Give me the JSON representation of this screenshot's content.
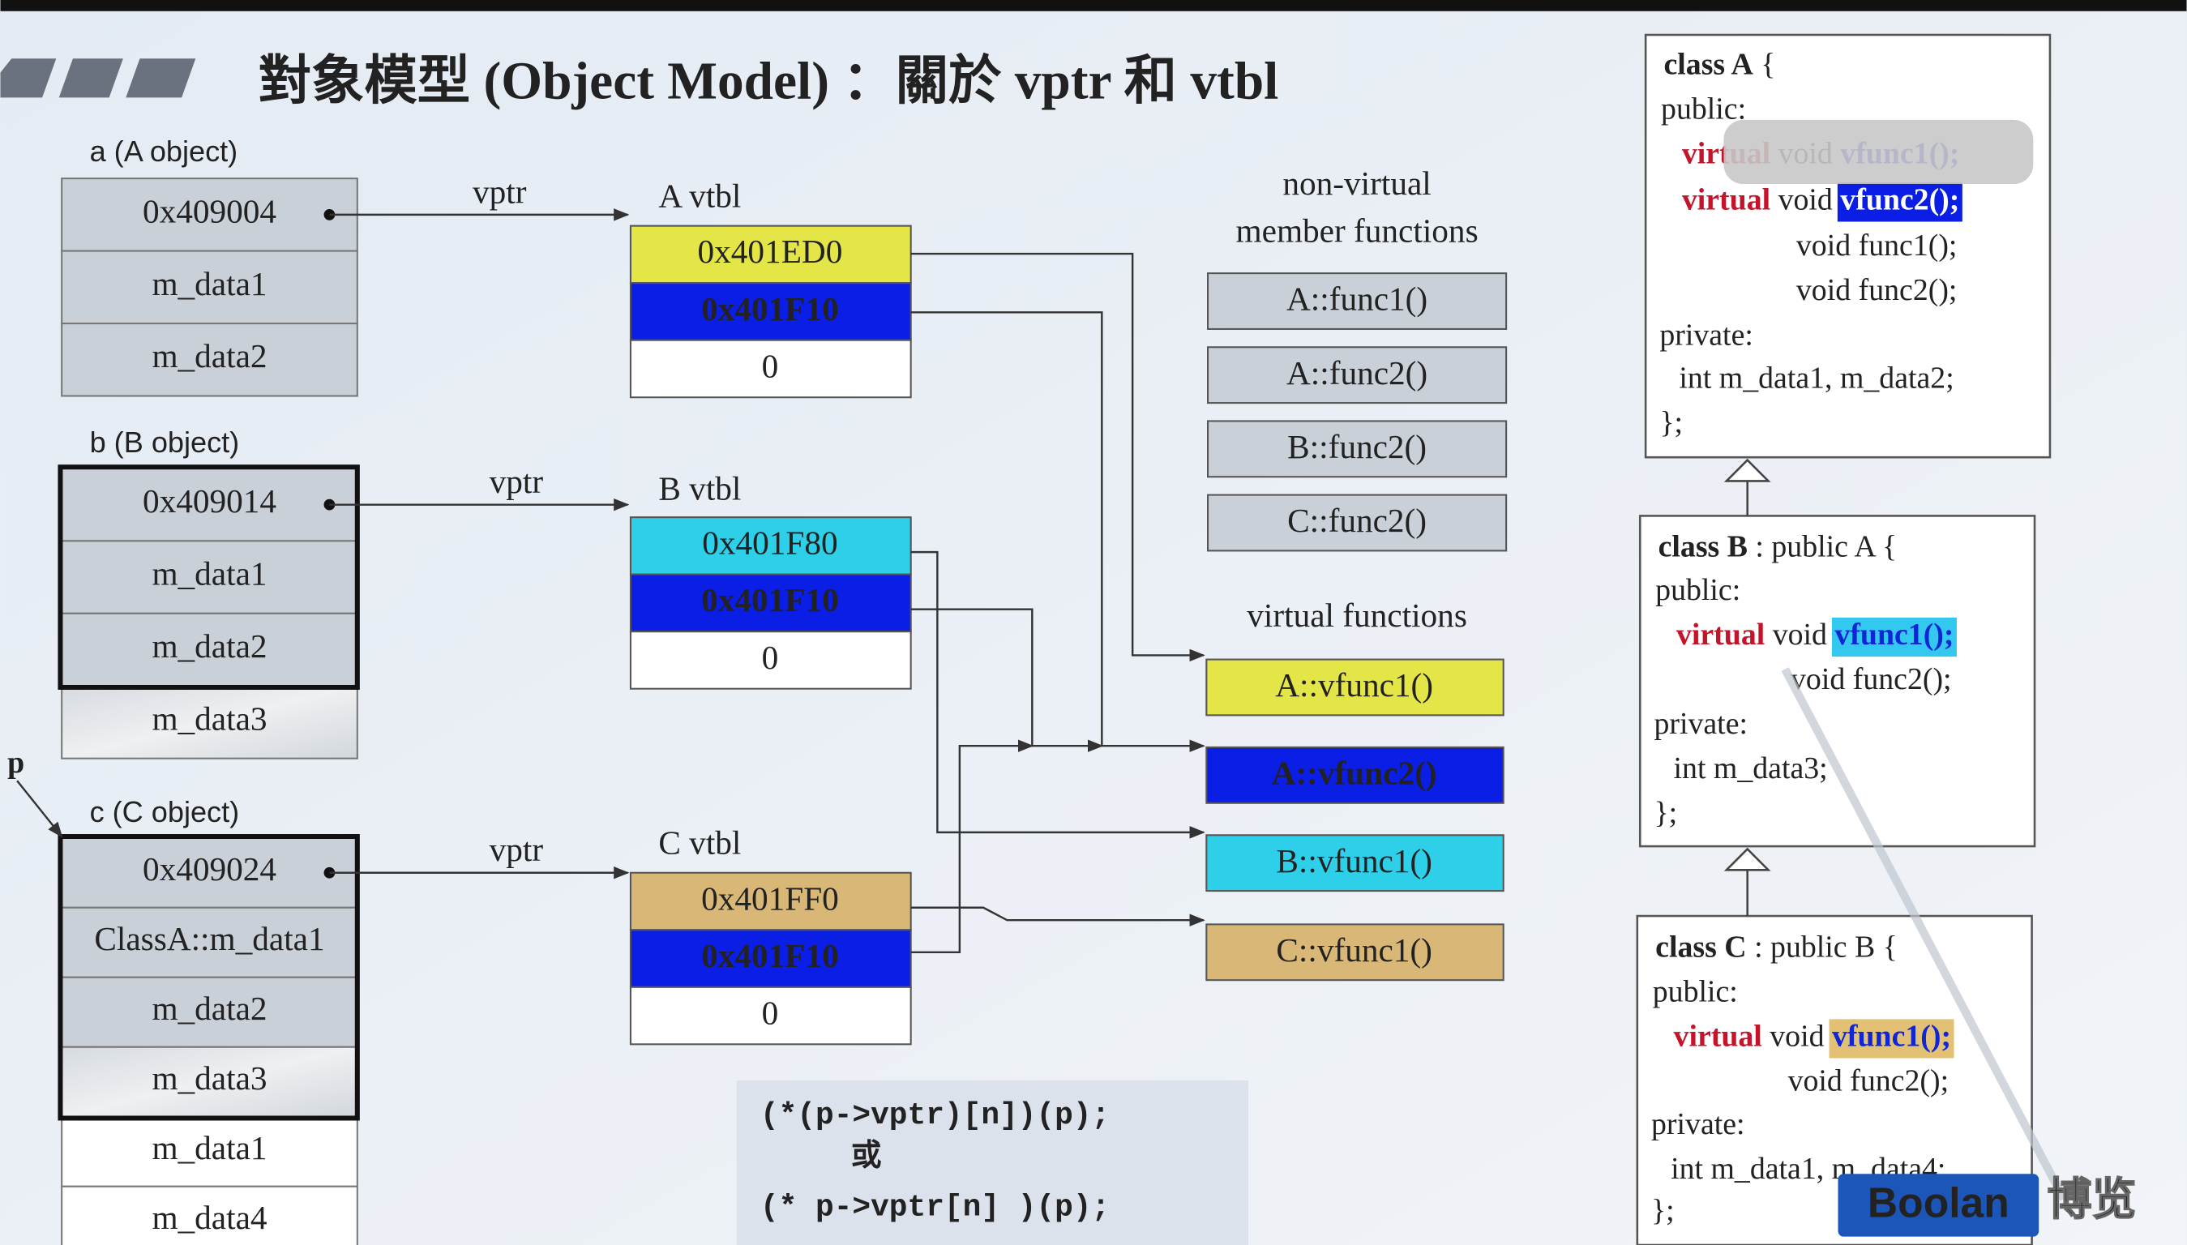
{
  "title": "對象模型 (Object Model) ：關於 vptr 和 vtbl",
  "objects": [
    {
      "label": "a (A object)",
      "cells": [
        "0x409004",
        "m_data1",
        "m_data2"
      ]
    },
    {
      "label": "b (B object)",
      "cells": [
        "0x409014",
        "m_data1",
        "m_data2",
        "m_data3"
      ]
    },
    {
      "label": "c (C object)",
      "cells": [
        "0x409024",
        "ClassA::m_data1",
        "m_data2",
        "m_data3",
        "m_data1",
        "m_data4"
      ]
    }
  ],
  "pointer_label": "p",
  "vptr_labels": [
    "vptr",
    "vptr",
    "vptr"
  ],
  "vtbls": [
    {
      "label": "A vtbl",
      "entries": [
        "0x401ED0",
        "0x401F10",
        "0"
      ]
    },
    {
      "label": "B vtbl",
      "entries": [
        "0x401F80",
        "0x401F10",
        "0"
      ]
    },
    {
      "label": "C vtbl",
      "entries": [
        "0x401FF0",
        "0x401F10",
        "0"
      ]
    }
  ],
  "non_virtual": {
    "heading": [
      "non-virtual",
      "member functions"
    ],
    "functions": [
      "A::func1()",
      "A::func2()",
      "B::func2()",
      "C::func2()"
    ]
  },
  "virtual": {
    "heading": "virtual functions",
    "functions": [
      "A::vfunc1()",
      "A::vfunc2()",
      "B::vfunc1()",
      "C::vfunc1()"
    ]
  },
  "call_code": [
    "(*(p->vptr)[n])(p);",
    "或",
    "(* p->vptr[n] )(p);"
  ],
  "classes": [
    {
      "lines": [
        [
          "class A",
          " {"
        ],
        [
          "public:"
        ],
        [
          "virtual",
          " void ",
          "vfunc1();"
        ],
        [
          "virtual",
          " void ",
          "vfunc2();"
        ],
        [
          "void  func1();"
        ],
        [
          "void  func2();"
        ],
        [
          "private:"
        ],
        [
          "int m_data1, m_data2;"
        ],
        [
          "};"
        ]
      ]
    },
    {
      "lines": [
        [
          "class B",
          " : public A {"
        ],
        [
          "public:"
        ],
        [
          "virtual",
          " void ",
          "vfunc1();"
        ],
        [
          "void  func2();"
        ],
        [
          "private:"
        ],
        [
          "int m_data3;"
        ],
        [
          "};"
        ]
      ]
    },
    {
      "lines": [
        [
          "class C",
          " : public B {"
        ],
        [
          "public:"
        ],
        [
          "virtual",
          " void ",
          "vfunc1();"
        ],
        [
          "void  func2();"
        ],
        [
          "private:"
        ],
        [
          "int m_data1, m_data4;"
        ],
        [
          "};"
        ]
      ]
    }
  ],
  "watermark": [
    "Boolan",
    "博览"
  ]
}
